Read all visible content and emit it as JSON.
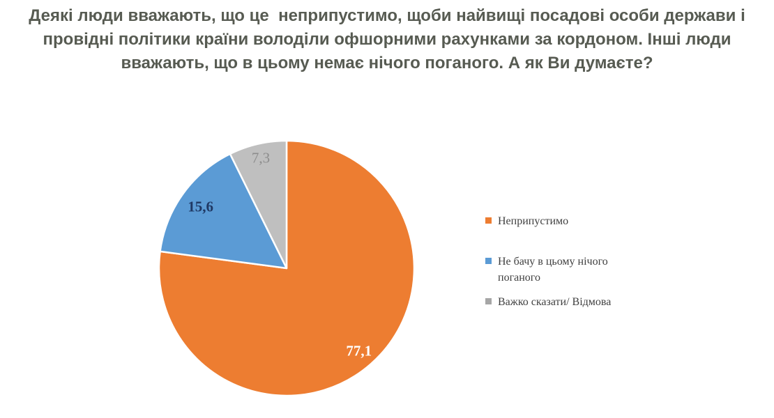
{
  "title": {
    "lines": [
      "Деякі люди вважають, що це  неприпустимо, щоби найвищі посадові особи держави і",
      "провідні політики країни володіли офшорними рахунками за кордоном. Інші люди",
      "вважають, що в цьому немає нічого поганого. А як Ви думаєте?"
    ],
    "color": "#575b52"
  },
  "chart_data": {
    "type": "pie",
    "title": "Деякі люди вважають, що це неприпустимо, щоби найвищі посадові особи держави і провідні політики країни володіли офшорними рахунками за кордоном. Інші люди вважають, що в цьому немає нічого поганого. А як Ви думаєте?",
    "categories": [
      "Неприпустимо",
      "Не бачу в цьому нічого поганого",
      "Важко сказати/ Відмова"
    ],
    "values": [
      77.1,
      15.6,
      7.3
    ],
    "value_labels": [
      "77,1",
      "15,6",
      "7,3"
    ],
    "units": "percent",
    "slice_colors": [
      "#ED7D31",
      "#5B9BD5",
      "#BFBFBF"
    ],
    "legend_marker_colors": [
      "#ED7D31",
      "#5B9BD5",
      "#A6A6A6"
    ],
    "label_colors": [
      "#FFFFFF",
      "#1F3864",
      "#8C8C8C"
    ],
    "label_weights": [
      "bold",
      "bold",
      "normal"
    ],
    "label_radius_frac": [
      0.86,
      0.83,
      0.89
    ],
    "start_angle_deg": 0,
    "direction": "clockwise",
    "slice_border_color": "#FFFFFF",
    "legend_position": "right",
    "legend_text_color": "#404040"
  }
}
